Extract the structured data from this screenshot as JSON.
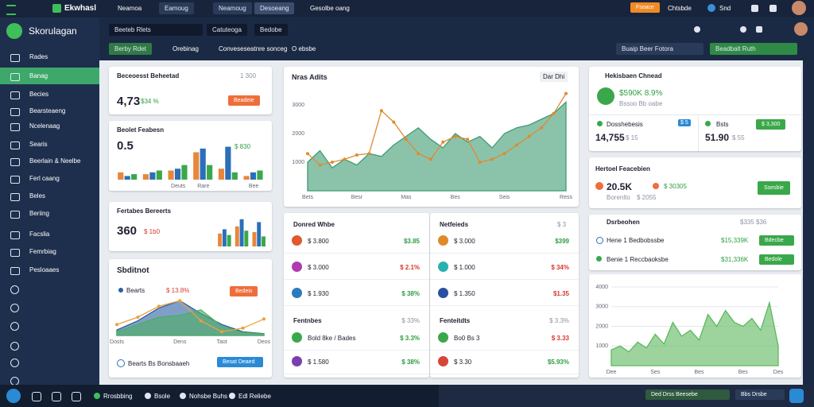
{
  "top_bar": {
    "logo": "Ekwhasl",
    "tabs": [
      "Neamoa",
      "Eamoug",
      "Neamoug",
      "Desoeang",
      "Gesolbe oang"
    ],
    "action": "Fsoace",
    "menu": "Chtsbde",
    "status": "Snd"
  },
  "sidebar": {
    "brand": "Skorulagan",
    "items": [
      "Rades",
      "Banag",
      "Becies",
      "Bearsteaeng",
      "Ncelenaag",
      "Searis",
      "Beerlain & Neelbe",
      "Ferl caang",
      "Beles",
      "Beriing",
      "Facslia",
      "Femrbiag",
      "Pesloaaes"
    ]
  },
  "subheader": {
    "tabs": [
      "Beeteb Rlets",
      "Catuteoga",
      "Bedobe"
    ],
    "filters": [
      "Berby Rdet",
      "Orebinag",
      "Conveseseatnre sonceg",
      "O ebsbe"
    ],
    "select": "Buaip Beer Fotora",
    "button": "Beadbalt Ruth"
  },
  "cards": {
    "summary": {
      "title": "Beceoesst Beheetad",
      "meta": "1 300",
      "value": "4,73",
      "delta": "$34 %",
      "button": "Beadeie"
    },
    "feature": {
      "title": "Beolet Feabesn",
      "value": "0.5",
      "delta": "$ 830"
    },
    "reports": {
      "title": "Fertabes Bereerts",
      "value": "360",
      "delta": "$ 1b0"
    },
    "subtotal": {
      "title": "Sbditnot",
      "legend": "Bearts",
      "delta": "$ 13.8%",
      "button": "Bedeis",
      "footer": "Bearts Bs Bonsbaaeh",
      "footer_button": "Besat Deaed"
    },
    "main": {
      "title": "Nras Adits",
      "meta": "Dar Dhi"
    },
    "highlight": {
      "title": "Hekisbaen Chnead",
      "value": "$590K 8.9%",
      "caption": "Bssoo Bb oabe",
      "left_label": "Dosshebesis",
      "left_badge": "$ 5",
      "left_value": "14,755",
      "left_note": "$ 15",
      "right_label": "Bsts",
      "right_button": "$ 3,300",
      "right_value": "51.90",
      "right_note": "$ 55"
    },
    "forecast": {
      "title": "Hertoel Feacebien",
      "value": "20.5K",
      "note": "$ 2055",
      "caption": "Borenlto",
      "trend": "$ 30305",
      "button": "Ssesbie"
    },
    "accounts": {
      "title": "Dsrbeohen",
      "meta": "$335 $36",
      "rows": [
        {
          "label": "Hene 1 Bedbobssbe",
          "value": "$15,339K",
          "button": "Bdecbe"
        },
        {
          "label": "Benie 1 Reccbaoksbe",
          "value": "$31,336K",
          "button": "Bedole"
        }
      ]
    }
  },
  "lists": [
    {
      "title": "Donred Whbe",
      "rows": [
        {
          "label": "$ 3.800",
          "value": "$3.85",
          "value_color": "#2e9e3e",
          "icon_color": "#e05a2b"
        },
        {
          "label": "$ 3.000",
          "value": "$ 2.1%",
          "value_color": "#d63a2f",
          "icon_color": "#b03bb0"
        },
        {
          "label": "$ 1.930",
          "value": "$ 38%",
          "value_color": "#2e9e3e",
          "icon_color": "#2b7bbd"
        }
      ],
      "section": "Fentnbes",
      "section_meta": "$ 33%",
      "section_rows": [
        {
          "label": "Bold 8ke / Bades",
          "value": "$ 3.3%",
          "value_color": "#2e9e3e",
          "icon_color": "#3aa84a"
        },
        {
          "label": "$ 1.580",
          "value": "$ 38%",
          "value_color": "#2e9e3e",
          "icon_color": "#7a3fb0"
        }
      ]
    },
    {
      "title": "Netfeieds",
      "meta": "$ 3",
      "rows": [
        {
          "label": "$ 3.000",
          "value": "$399",
          "value_color": "#2e9e3e",
          "icon_color": "#e0892b"
        },
        {
          "label": "$ 1.000",
          "value": "$ 34%",
          "value_color": "#d63a2f",
          "icon_color": "#2bb0b0"
        },
        {
          "label": "$ 1.350",
          "value": "$1.35",
          "value_color": "#d63a2f",
          "icon_color": "#2b4fa0"
        }
      ],
      "section": "Fenteitdts",
      "section_meta": "$ 3.3%",
      "section_rows": [
        {
          "label": "Bo0 Bs 3",
          "value": "$ 3.33",
          "value_color": "#d63a2f",
          "icon_color": "#3aa84a"
        },
        {
          "label": "$ 3.30",
          "value": "$5.93%",
          "value_color": "#2e9e3e",
          "icon_color": "#d6453a"
        }
      ]
    }
  ],
  "taskbar": {
    "items": [
      "Rrosbbing",
      "Bsole",
      "Nohsbe Buhs",
      "Edl Reliebe"
    ],
    "status": "Ded Drss Beesebe",
    "menu": "Bbs Drsbe"
  },
  "chart_data": [
    {
      "type": "area",
      "categories": [
        "Bets",
        null,
        null,
        null,
        "Besr",
        null,
        null,
        null,
        "Mas",
        null,
        null,
        null,
        "Bes",
        null,
        null,
        null,
        "Seis",
        null,
        null,
        null,
        null,
        "Ress"
      ],
      "ylim": [
        0,
        3500
      ],
      "yticks": [
        3000,
        2000,
        1000
      ],
      "grid": false,
      "series": [
        {
          "type": "area",
          "color": "#3d9b72",
          "values": [
            1000,
            1400,
            800,
            1100,
            900,
            1300,
            1200,
            1600,
            1900,
            2200,
            1800,
            1500,
            2000,
            1700,
            1900,
            1500,
            2000,
            2200,
            2300,
            2500,
            2700,
            3100
          ]
        },
        {
          "type": "line",
          "color": "#e08a2e",
          "markers": true,
          "values": [
            1300,
            900,
            1000,
            1100,
            1250,
            1300,
            2800,
            2400,
            1800,
            1300,
            1100,
            1700,
            1900,
            1800,
            1000,
            1100,
            1300,
            1600,
            1900,
            2200,
            2700,
            3400
          ]
        }
      ]
    },
    {
      "type": "area",
      "categories": [
        "Dee",
        null,
        null,
        null,
        null,
        "Ses",
        null,
        null,
        null,
        null,
        "Bes",
        null,
        null,
        null,
        null,
        "Bes",
        null,
        null,
        null,
        "Des"
      ],
      "ylim": [
        0,
        4000
      ],
      "yticks": [
        4000,
        3000,
        2000,
        1000
      ],
      "grid": true,
      "series": [
        {
          "type": "area",
          "color": "#5cb85c",
          "values": [
            800,
            1000,
            700,
            1200,
            900,
            1600,
            1100,
            2200,
            1500,
            1800,
            1300,
            2600,
            2000,
            2800,
            2200,
            2000,
            2400,
            1800,
            3200,
            1000
          ]
        }
      ]
    },
    {
      "type": "bar",
      "categories": [
        null,
        null,
        "Deuts",
        "Rare",
        null,
        "Bee"
      ],
      "ylim": [
        0,
        100
      ],
      "series": [
        {
          "color": "#e8873a",
          "values": [
            20,
            15,
            25,
            75,
            30,
            10
          ]
        },
        {
          "color": "#2a6fb8",
          "values": [
            10,
            20,
            30,
            85,
            90,
            20
          ]
        },
        {
          "color": "#3aa84a",
          "values": [
            15,
            25,
            40,
            40,
            20,
            25
          ]
        }
      ]
    },
    {
      "type": "bar",
      "categories": [
        null,
        null,
        null
      ],
      "ylim": [
        0,
        100
      ],
      "series": [
        {
          "color": "#e8873a",
          "values": [
            45,
            70,
            50
          ]
        },
        {
          "color": "#2a6fb8",
          "values": [
            60,
            95,
            85
          ]
        },
        {
          "color": "#3aa84a",
          "values": [
            40,
            55,
            35
          ]
        }
      ]
    },
    {
      "type": "area",
      "categories": [
        "Dosts",
        null,
        null,
        "Dens",
        null,
        "Taot",
        null,
        "Deos"
      ],
      "ylim": [
        0,
        100
      ],
      "series": [
        {
          "type": "area",
          "color": "#2c5fa3",
          "values": [
            15,
            40,
            75,
            95,
            60,
            30,
            10,
            5
          ]
        },
        {
          "type": "area",
          "color": "#4caf62",
          "values": [
            10,
            30,
            50,
            55,
            70,
            25,
            8,
            4
          ]
        },
        {
          "type": "line",
          "color": "#e8a13a",
          "markers": true,
          "values": [
            30,
            50,
            80,
            95,
            40,
            10,
            20,
            45
          ]
        }
      ]
    }
  ]
}
